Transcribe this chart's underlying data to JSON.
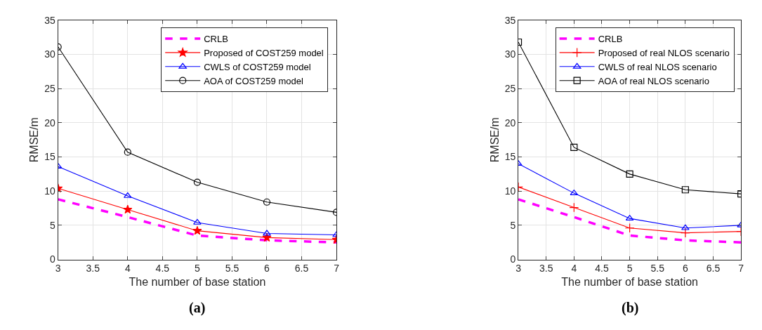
{
  "chart_data": [
    {
      "type": "line",
      "xlabel": "The number of base station",
      "ylabel": "RMSE/m",
      "x": [
        3,
        4,
        5,
        6,
        7
      ],
      "xlim": [
        3,
        7
      ],
      "xticks": [
        3,
        3.5,
        4,
        4.5,
        5,
        5.5,
        6,
        6.5,
        7
      ],
      "ylim": [
        0,
        35
      ],
      "yticks": [
        0,
        5,
        10,
        15,
        20,
        25,
        30,
        35
      ],
      "grid": true,
      "legend": "top right",
      "annotations": [
        "(a)"
      ],
      "series": [
        {
          "name": "CRLB",
          "color": "#ff00ff",
          "values": [
            8.8,
            6.2,
            3.5,
            2.8,
            2.5
          ],
          "line_style": "dashed",
          "marker": "none"
        },
        {
          "name": "Proposed of COST259 model",
          "color": "#ff0000",
          "values": [
            10.4,
            7.3,
            4.2,
            3.2,
            2.9
          ],
          "marker": "star"
        },
        {
          "name": "CWLS of COST259 model",
          "color": "#0000ff",
          "values": [
            13.6,
            9.3,
            5.4,
            3.8,
            3.6
          ],
          "marker": "triangle"
        },
        {
          "name": "AOA of COST259 model",
          "color": "#000000",
          "values": [
            31.1,
            15.7,
            11.3,
            8.4,
            6.9
          ],
          "marker": "circle"
        }
      ]
    },
    {
      "type": "line",
      "xlabel": "The number of base station",
      "ylabel": "RMSE/m",
      "x": [
        3,
        4,
        5,
        6,
        7
      ],
      "xlim": [
        3,
        7
      ],
      "xticks": [
        3,
        3.5,
        4,
        4.5,
        5,
        5.5,
        6,
        6.5,
        7
      ],
      "ylim": [
        0,
        35
      ],
      "yticks": [
        0,
        5,
        10,
        15,
        20,
        25,
        30,
        35
      ],
      "grid": true,
      "legend": "top right",
      "annotations": [
        "(b)"
      ],
      "series": [
        {
          "name": "CRLB",
          "color": "#ff00ff",
          "values": [
            8.8,
            6.2,
            3.5,
            2.8,
            2.5
          ],
          "line_style": "dashed",
          "marker": "none"
        },
        {
          "name": "Proposed of real NLOS scenario",
          "color": "#ff0000",
          "values": [
            10.6,
            7.6,
            4.6,
            3.9,
            4.1
          ],
          "marker": "cross"
        },
        {
          "name": "CWLS of real NLOS scenario",
          "color": "#0000ff",
          "values": [
            14.0,
            9.7,
            6.0,
            4.6,
            5.0
          ],
          "marker": "triangle"
        },
        {
          "name": "AOA of real NLOS scenario",
          "color": "#000000",
          "values": [
            31.8,
            16.4,
            12.5,
            10.2,
            9.6
          ],
          "marker": "square"
        }
      ]
    }
  ]
}
